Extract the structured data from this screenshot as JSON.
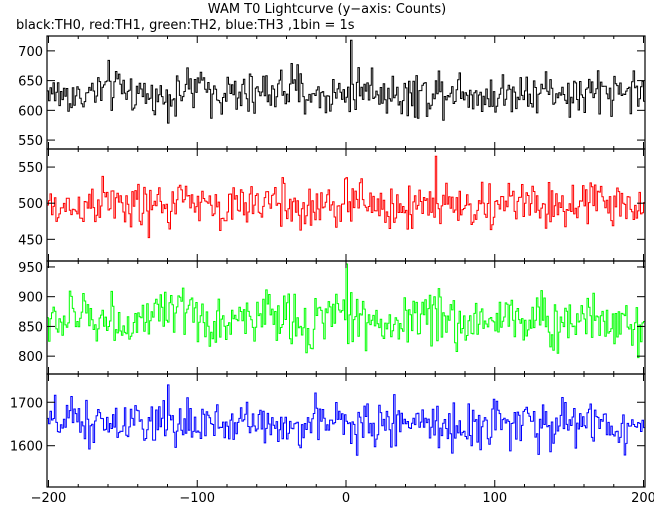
{
  "title": "WAM T0 Lightcurve (y−axis: Counts)",
  "subtitle": "black:TH0, red:TH1, green:TH2, blue:TH3 ,1bin = 1s",
  "chart_data": {
    "type": "line",
    "x_range": [
      -201,
      201
    ],
    "x_ticks": [
      -200,
      -100,
      0,
      100,
      200
    ],
    "bin_seconds": 1,
    "grid": false,
    "series": [
      {
        "name": "TH0",
        "color": "#000000",
        "ylim": [
          535,
          725
        ],
        "y_ticks": [
          550,
          600,
          650,
          700
        ],
        "mean": 630,
        "noise": 25,
        "spike": {
          "x": 3,
          "y": 718
        }
      },
      {
        "name": "TH1",
        "color": "#ff0000",
        "ylim": [
          420,
          575
        ],
        "y_ticks": [
          450,
          500,
          550
        ],
        "mean": 497,
        "noise": 22,
        "spike": {
          "x": 60,
          "y": 565
        }
      },
      {
        "name": "TH2",
        "color": "#00ff00",
        "ylim": [
          770,
          960
        ],
        "y_ticks": [
          800,
          850,
          900,
          950
        ],
        "mean": 862,
        "noise": 30,
        "spike": {
          "x": 0,
          "y": 955
        }
      },
      {
        "name": "TH3",
        "color": "#0000ff",
        "ylim": [
          1505,
          1765
        ],
        "y_ticks": [
          1600,
          1700
        ],
        "mean": 1650,
        "noise": 35,
        "spike": {
          "x": -120,
          "y": 1740
        }
      }
    ]
  }
}
